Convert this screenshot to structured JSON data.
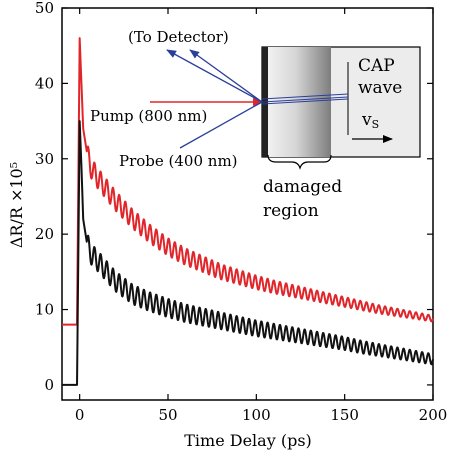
{
  "chart_data": {
    "type": "line",
    "xlabel": "Time Delay (ps)",
    "ylabel": "ΔR/R ×10⁵",
    "xlim": [
      -10,
      200
    ],
    "ylim": [
      -2,
      50
    ],
    "xticks": [
      0,
      50,
      100,
      150,
      200
    ],
    "yticks": [
      0,
      10,
      20,
      30,
      40,
      50
    ],
    "grid": false,
    "series": [
      {
        "color": "#e0262b",
        "baseline": 8,
        "peak": 46,
        "points": [
          [
            -10,
            8
          ],
          [
            -1.5,
            8
          ],
          [
            0,
            46
          ],
          [
            1,
            40
          ],
          [
            2,
            34
          ],
          [
            4,
            31
          ],
          [
            6,
            29
          ],
          [
            10,
            27.5
          ],
          [
            20,
            24.5
          ],
          [
            30,
            22
          ],
          [
            40,
            20
          ],
          [
            50,
            18.3
          ],
          [
            60,
            17
          ],
          [
            70,
            16
          ],
          [
            80,
            15
          ],
          [
            90,
            14.3
          ],
          [
            100,
            13.6
          ],
          [
            110,
            13
          ],
          [
            120,
            12.5
          ],
          [
            130,
            12
          ],
          [
            140,
            11.5
          ],
          [
            150,
            11
          ],
          [
            160,
            10.5
          ],
          [
            170,
            10
          ],
          [
            180,
            9.6
          ],
          [
            190,
            9.2
          ],
          [
            200,
            8.8
          ]
        ],
        "oscillation_period": 3.5,
        "oscillation_amplitude_start": 1.4,
        "oscillation_amplitude_end": 0.4
      },
      {
        "color": "#111111",
        "baseline": 0,
        "peak": 35,
        "points": [
          [
            -10,
            0
          ],
          [
            -1.5,
            0
          ],
          [
            0,
            35
          ],
          [
            1,
            29
          ],
          [
            2,
            22
          ],
          [
            4,
            19
          ],
          [
            6,
            17.5
          ],
          [
            10,
            16.5
          ],
          [
            20,
            13.8
          ],
          [
            30,
            12
          ],
          [
            40,
            11
          ],
          [
            50,
            10.2
          ],
          [
            60,
            9.5
          ],
          [
            70,
            9
          ],
          [
            80,
            8.5
          ],
          [
            90,
            8
          ],
          [
            100,
            7.5
          ],
          [
            110,
            7.1
          ],
          [
            120,
            6.7
          ],
          [
            130,
            6.3
          ],
          [
            140,
            5.9
          ],
          [
            150,
            5.5
          ],
          [
            160,
            5
          ],
          [
            170,
            4.6
          ],
          [
            180,
            4.2
          ],
          [
            190,
            3.8
          ],
          [
            200,
            3.4
          ]
        ],
        "oscillation_period": 3.5,
        "oscillation_amplitude_start": 1.4,
        "oscillation_amplitude_end": 0.7
      }
    ],
    "annotations": {
      "to_detector": "(To Detector)",
      "pump": "Pump (800 nm)",
      "probe": "Probe (400 nm)",
      "cap_wave_line1": "CAP",
      "cap_wave_line2": "wave",
      "velocity": "v",
      "velocity_sub": "S",
      "damaged_line1": "damaged",
      "damaged_line2": "region"
    },
    "colors": {
      "pump_arrow": "#e0262b",
      "probe_arrow": "#2a3f9a"
    }
  }
}
